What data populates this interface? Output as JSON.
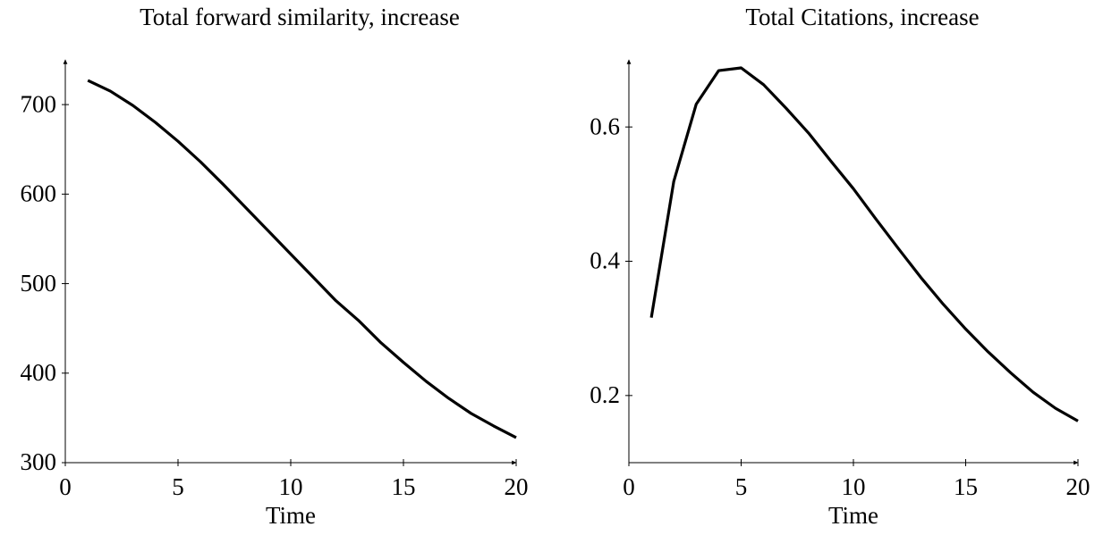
{
  "chart_data": [
    {
      "type": "line",
      "title": "Total forward similarity, increase",
      "xlabel": "Time",
      "x": [
        1,
        2,
        3,
        4,
        5,
        6,
        7,
        8,
        9,
        10,
        11,
        12,
        13,
        14,
        15,
        16,
        17,
        18,
        19,
        20
      ],
      "values": [
        727,
        715,
        699,
        680,
        659,
        636,
        611,
        585,
        559,
        533,
        507,
        481,
        459,
        434,
        412,
        391,
        372,
        355,
        341,
        328
      ],
      "color": "#000000",
      "xlim": [
        0,
        20
      ],
      "xticks": [
        0,
        5,
        10,
        15,
        20
      ],
      "ylim": [
        300,
        750
      ],
      "yticks": [
        300,
        400,
        500,
        600,
        700
      ]
    },
    {
      "type": "line",
      "title": "Total Citations, increase",
      "xlabel": "Time",
      "x": [
        1,
        2,
        3,
        4,
        5,
        6,
        7,
        8,
        9,
        10,
        11,
        12,
        13,
        14,
        15,
        16,
        17,
        18,
        19,
        20
      ],
      "values": [
        0.316,
        0.519,
        0.634,
        0.684,
        0.688,
        0.663,
        0.628,
        0.591,
        0.549,
        0.508,
        0.463,
        0.419,
        0.376,
        0.336,
        0.299,
        0.265,
        0.234,
        0.205,
        0.181,
        0.162
      ],
      "color": "#000000",
      "xlim": [
        0,
        20
      ],
      "xticks": [
        0,
        5,
        10,
        15,
        20
      ],
      "ylim": [
        0.1,
        0.7
      ],
      "yticks": [
        0.2,
        0.4,
        0.6
      ]
    }
  ]
}
